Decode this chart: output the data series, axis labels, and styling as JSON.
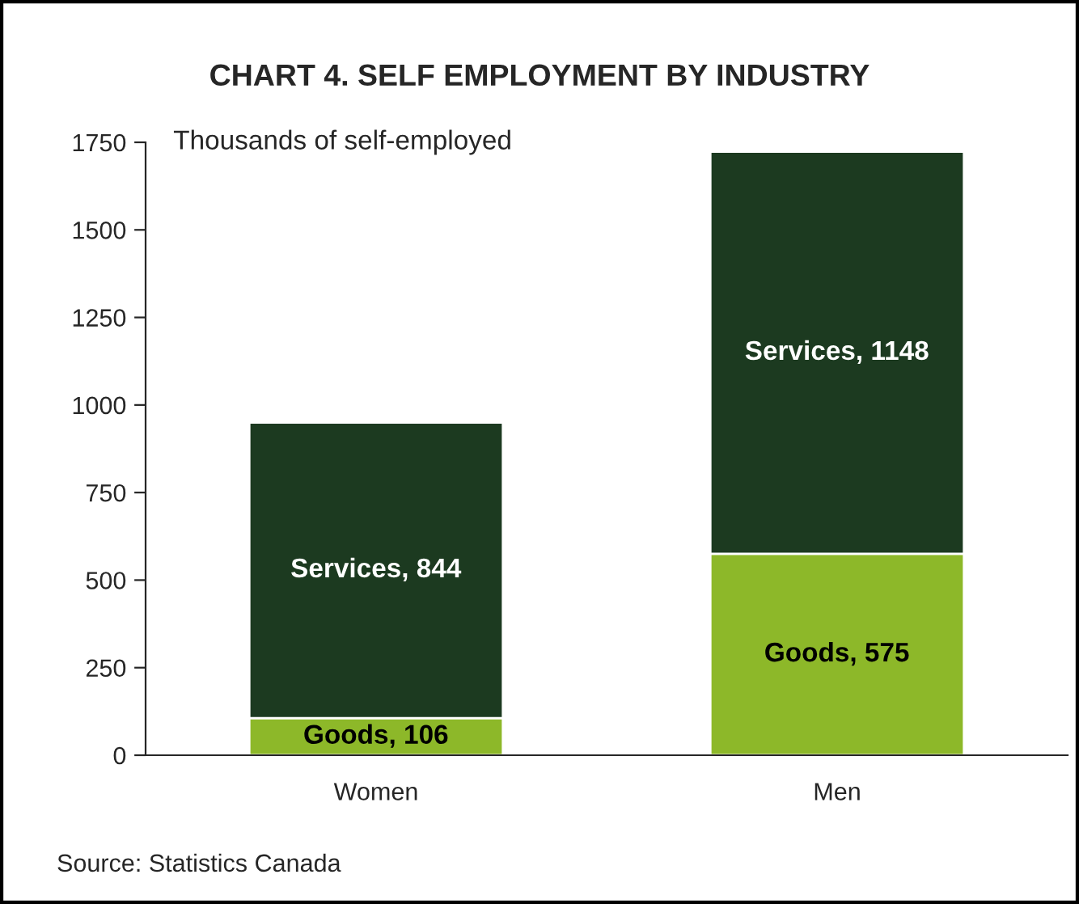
{
  "chart_data": {
    "type": "bar",
    "title": "CHART 4. SELF EMPLOYMENT BY INDUSTRY",
    "ylabel": "Thousands of self-employed",
    "categories": [
      "Women",
      "Men"
    ],
    "stacked": true,
    "series": [
      {
        "name": "Goods",
        "color": "#8db829",
        "values": [
          106,
          575
        ],
        "value_labels": [
          ", 106",
          ", 575"
        ]
      },
      {
        "name": "Services",
        "color": "#1c3a20",
        "values": [
          844,
          1148
        ],
        "value_labels": [
          ", 844",
          ", 1148"
        ]
      }
    ],
    "ylim": [
      0,
      1750
    ],
    "yticks": [
      0,
      250,
      500,
      750,
      1000,
      1250,
      1500,
      1750
    ],
    "grid": false,
    "legend": false,
    "annotations": [
      "Source: Statistics Canada"
    ]
  }
}
